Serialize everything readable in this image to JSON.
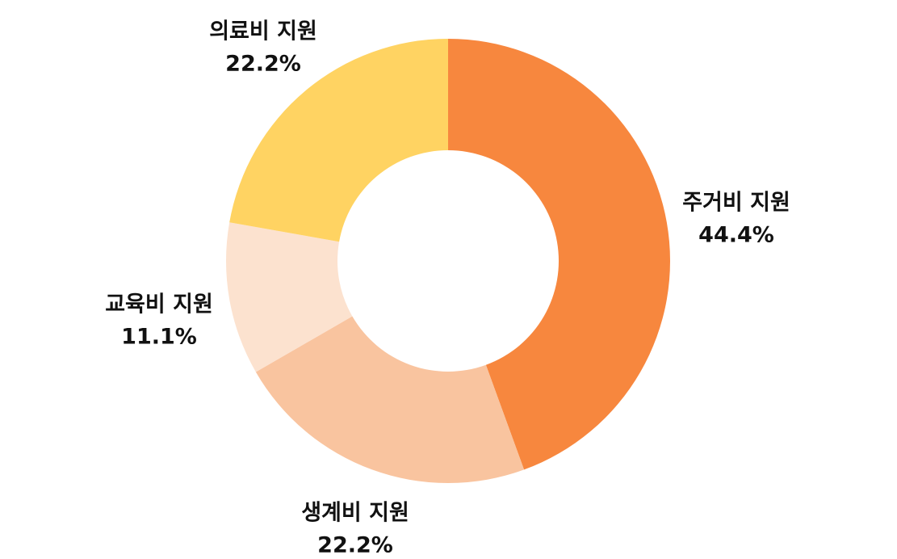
{
  "chart_data": {
    "type": "pie",
    "title": "",
    "categories": [
      "주거비 지원",
      "생계비 지원",
      "교육비 지원",
      "의료비 지원"
    ],
    "values": [
      44.4,
      22.2,
      11.1,
      22.2
    ],
    "value_labels": [
      "44.4%",
      "22.2%",
      "11.1%",
      "22.2%"
    ],
    "colors": [
      "#F7873E",
      "#F9C49F",
      "#FCE2CF",
      "#FFD362"
    ],
    "donut": true,
    "start": "top",
    "direction": "clockwise",
    "legend": "none"
  }
}
